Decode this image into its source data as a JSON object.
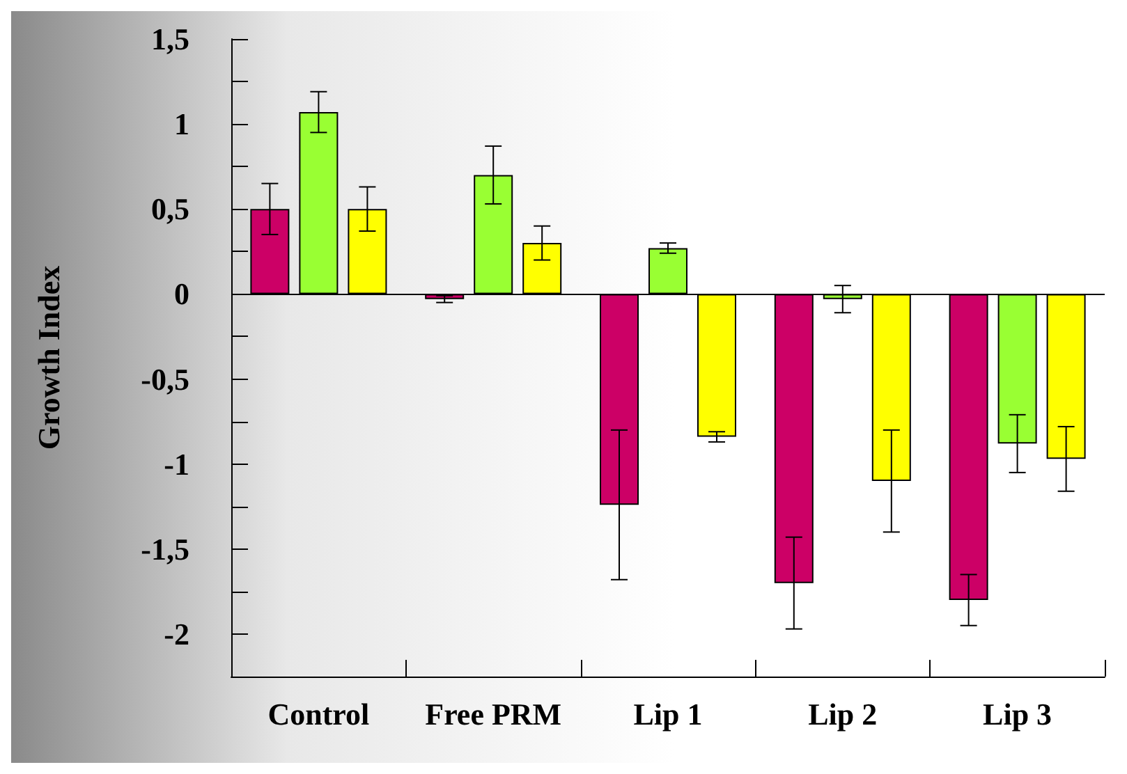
{
  "chart_data": {
    "type": "bar",
    "ylabel": "Growth Index",
    "categories": [
      "Control",
      "Free PRM",
      "Lip 1",
      "Lip 2",
      "Lip 3"
    ],
    "series": [
      {
        "color": "#cc0066",
        "values": [
          0.5,
          -0.03,
          -1.24,
          -1.7,
          -1.8
        ],
        "errors": [
          0.15,
          0.02,
          0.44,
          0.27,
          0.15
        ]
      },
      {
        "color": "#99ff33",
        "values": [
          1.07,
          0.7,
          0.27,
          -0.03,
          -0.88
        ],
        "errors": [
          0.12,
          0.17,
          0.03,
          0.08,
          0.17
        ]
      },
      {
        "color": "#ffff00",
        "values": [
          0.5,
          0.3,
          -0.84,
          -1.1,
          -0.97
        ],
        "errors": [
          0.13,
          0.1,
          0.03,
          0.3,
          0.19
        ]
      }
    ],
    "ylim": [
      -2.25,
      1.5
    ],
    "yticks": [
      {
        "value": 1.5,
        "label": "1,5"
      },
      {
        "value": 1.25,
        "label": null
      },
      {
        "value": 1,
        "label": "1"
      },
      {
        "value": 0.75,
        "label": null
      },
      {
        "value": 0.5,
        "label": "0,5"
      },
      {
        "value": 0.25,
        "label": null
      },
      {
        "value": 0,
        "label": "0"
      },
      {
        "value": -0.25,
        "label": null
      },
      {
        "value": -0.5,
        "label": "-0,5"
      },
      {
        "value": -0.75,
        "label": null
      },
      {
        "value": -1,
        "label": "-1"
      },
      {
        "value": -1.25,
        "label": null
      },
      {
        "value": -1.5,
        "label": "-1,5"
      },
      {
        "value": -1.75,
        "label": null
      },
      {
        "value": -2,
        "label": "-2"
      },
      {
        "value": -2.25,
        "label": null
      }
    ],
    "ref_lines": [
      {
        "axis": "y",
        "value": 0,
        "color": "#000000"
      }
    ],
    "grid": false
  }
}
